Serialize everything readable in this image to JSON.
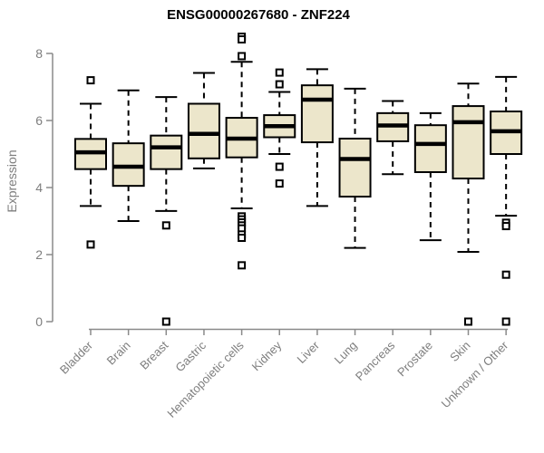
{
  "title": "ENSG00000267680 - ZNF224",
  "colors": {
    "background": "#ffffff",
    "box_fill": "#ece6cb",
    "box_stroke": "#000000",
    "median": "#000000",
    "whisker": "#000000",
    "outlier_stroke": "#000000",
    "outlier_fill": "#ffffff",
    "axis": "#8a8a8a",
    "tick_label": "#7e7e7e",
    "title": "#000000"
  },
  "chart_data": {
    "type": "boxplot",
    "title": "ENSG00000267680 - ZNF224",
    "xlabel": "",
    "ylabel": "Expression",
    "ylim": [
      0,
      8.6
    ],
    "yticks": [
      0,
      2,
      4,
      6,
      8
    ],
    "grid": false,
    "legend": "none",
    "categories": [
      "Bladder",
      "Brain",
      "Breast",
      "Gastric",
      "Hematopoietic cells",
      "Kidney",
      "Liver",
      "Lung",
      "Pancreas",
      "Prostate",
      "Skin",
      "Unknown / Other"
    ],
    "series": [
      {
        "label": "Bladder",
        "low": 3.45,
        "q1": 4.55,
        "median": 5.05,
        "q3": 5.45,
        "high": 6.5,
        "outliers": [
          7.2,
          2.3
        ]
      },
      {
        "label": "Brain",
        "low": 3.0,
        "q1": 4.05,
        "median": 4.62,
        "q3": 5.32,
        "high": 6.9,
        "outliers": []
      },
      {
        "label": "Breast",
        "low": 3.3,
        "q1": 4.55,
        "median": 5.2,
        "q3": 5.55,
        "high": 6.7,
        "outliers": [
          2.87,
          0.0
        ]
      },
      {
        "label": "Gastric",
        "low": 4.57,
        "q1": 4.87,
        "median": 5.6,
        "q3": 6.5,
        "high": 7.42,
        "outliers": []
      },
      {
        "label": "Hematopoietic cells",
        "low": 3.38,
        "q1": 4.9,
        "median": 5.46,
        "q3": 6.08,
        "high": 7.75,
        "outliers": [
          8.5,
          8.42,
          7.92,
          3.14,
          3.05,
          2.96,
          2.87,
          2.78,
          2.6,
          2.5,
          1.68
        ]
      },
      {
        "label": "Kidney",
        "low": 5.0,
        "q1": 5.5,
        "median": 5.83,
        "q3": 6.16,
        "high": 6.85,
        "outliers": [
          7.43,
          7.08,
          4.62,
          4.12
        ]
      },
      {
        "label": "Liver",
        "low": 3.45,
        "q1": 5.35,
        "median": 6.62,
        "q3": 7.05,
        "high": 7.53,
        "outliers": []
      },
      {
        "label": "Lung",
        "low": 2.2,
        "q1": 3.73,
        "median": 4.85,
        "q3": 5.46,
        "high": 6.95,
        "outliers": []
      },
      {
        "label": "Pancreas",
        "low": 4.4,
        "q1": 5.38,
        "median": 5.85,
        "q3": 6.22,
        "high": 6.58,
        "outliers": []
      },
      {
        "label": "Prostate",
        "low": 2.43,
        "q1": 4.46,
        "median": 5.3,
        "q3": 5.86,
        "high": 6.22,
        "outliers": []
      },
      {
        "label": "Skin",
        "low": 2.08,
        "q1": 4.27,
        "median": 5.95,
        "q3": 6.43,
        "high": 7.1,
        "outliers": [
          0.0
        ]
      },
      {
        "label": "Unknown / Other",
        "low": 3.16,
        "q1": 5.0,
        "median": 5.68,
        "q3": 6.27,
        "high": 7.3,
        "outliers": [
          2.95,
          2.85,
          1.4,
          0.0
        ]
      }
    ]
  }
}
